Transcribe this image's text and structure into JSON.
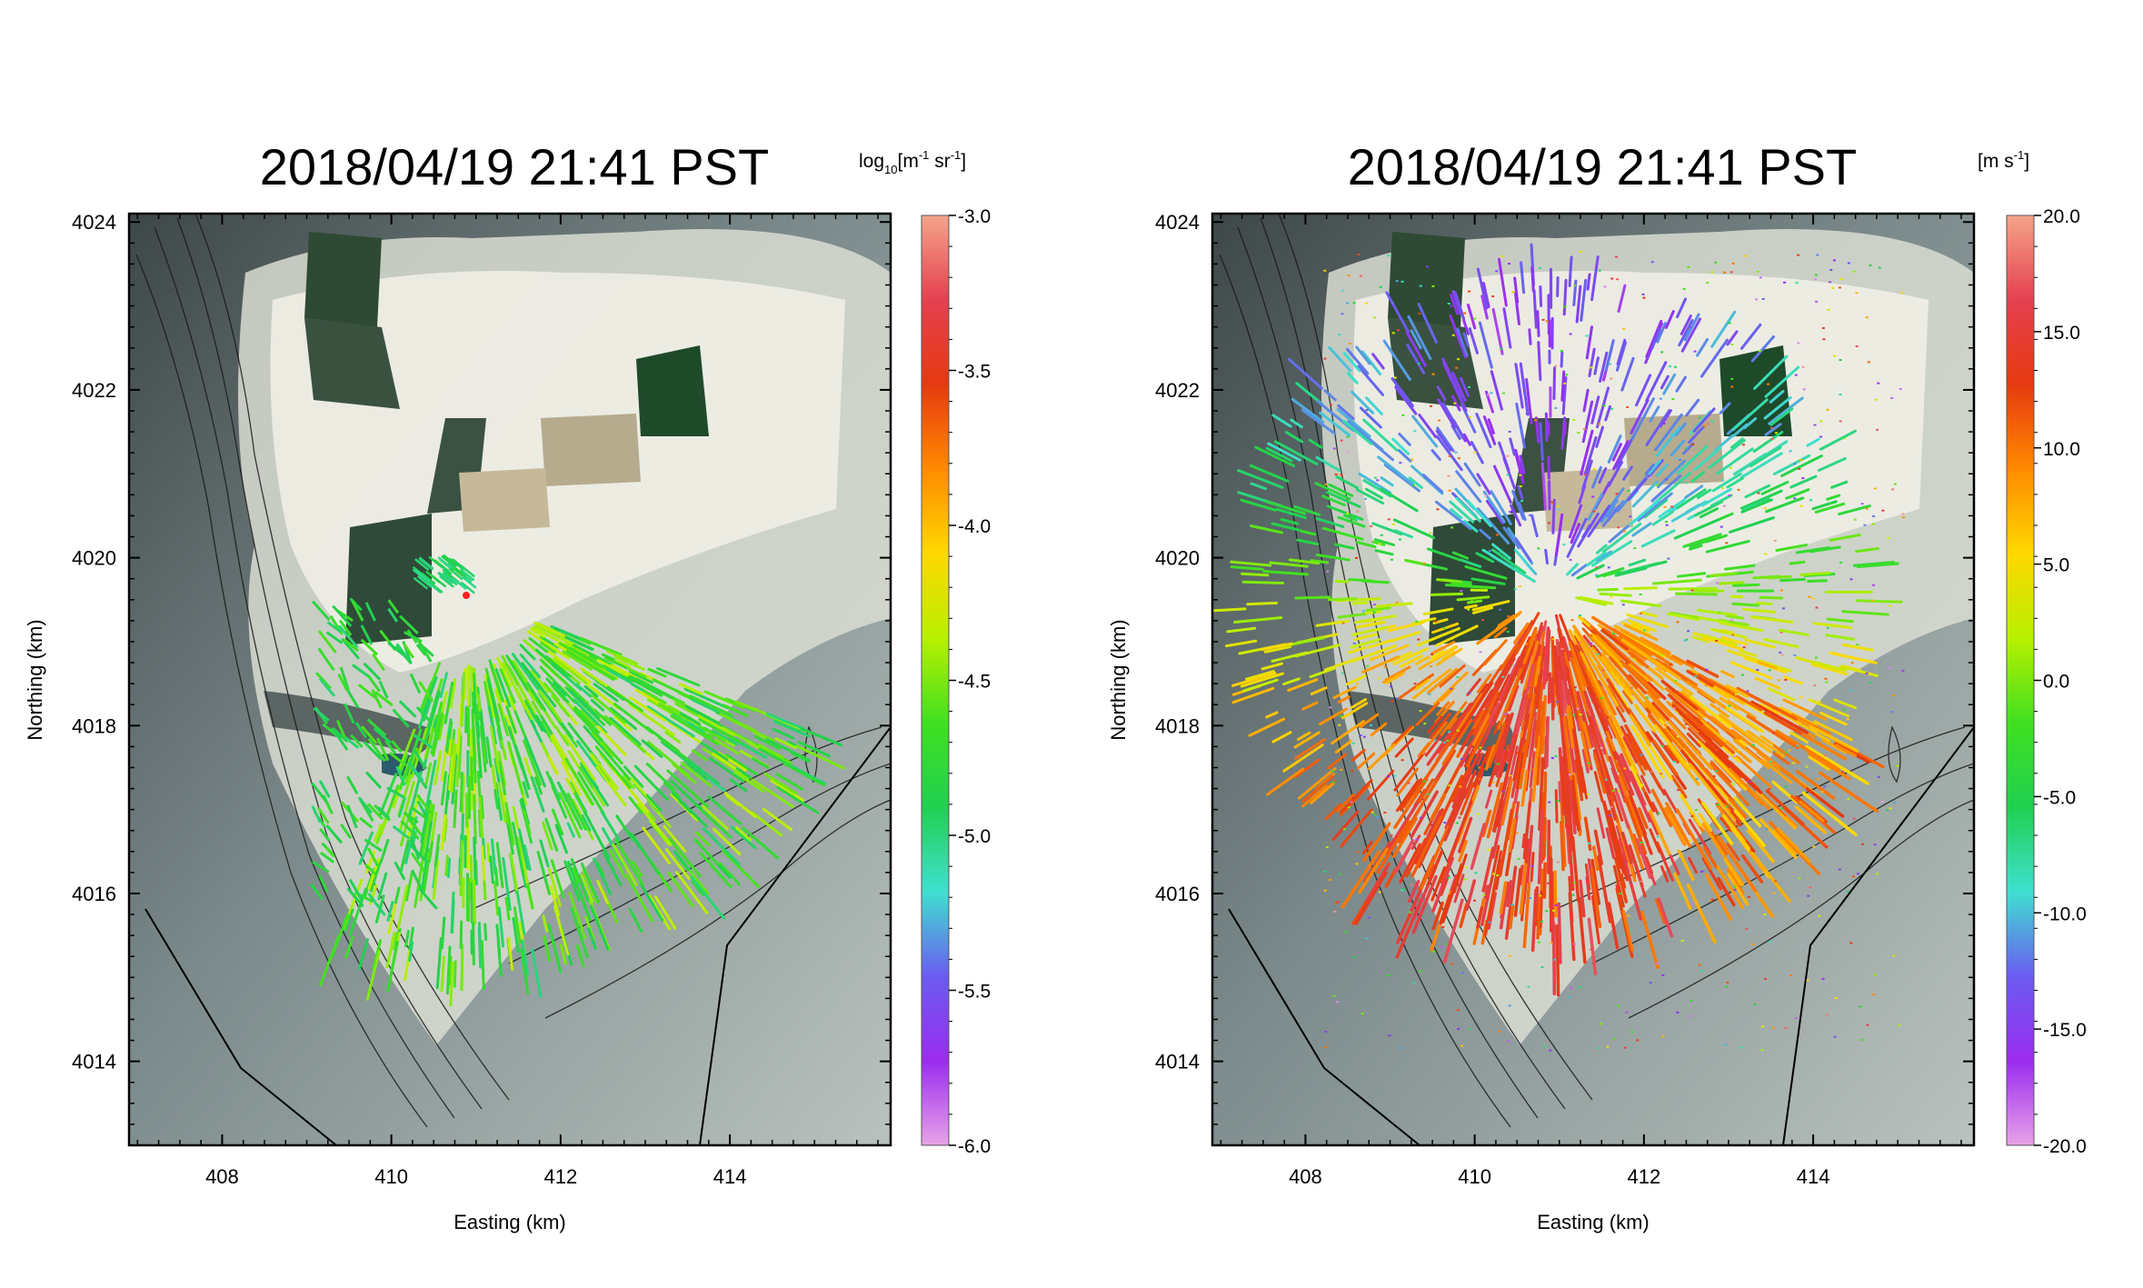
{
  "figure": {
    "panels": [
      {
        "title": "2018/04/19 21:41 PST",
        "colorbar": {
          "label_main": "log",
          "label_sub": "10",
          "label_rest": "[m",
          "label_exp1": "-1",
          "label_mid": " sr",
          "label_exp2": "-1",
          "label_end": "]",
          "ticks": [
            "-3.0",
            "-3.5",
            "-4.0",
            "-4.5",
            "-5.0",
            "-5.5",
            "-6.0"
          ],
          "tick_values": [
            -3.0,
            -3.5,
            -4.0,
            -4.5,
            -5.0,
            -5.5,
            -6.0
          ],
          "range": [
            -6.0,
            -3.0
          ],
          "colormap": [
            "#e8a2e8",
            "#9b2cf0",
            "#6a5cf0",
            "#3fe0d0",
            "#20d050",
            "#40e020",
            "#b8f000",
            "#ffd800",
            "#ff8a00",
            "#e63a10",
            "#e54050",
            "#f4a48a"
          ]
        },
        "scan": "backscatter"
      },
      {
        "title": "2018/04/19 21:41 PST",
        "colorbar": {
          "label_main": "[m s",
          "label_exp1": "-1",
          "label_end": "]",
          "ticks": [
            "20.0",
            "15.0",
            "10.0",
            "5.0",
            "0.0",
            "-5.0",
            "-10.0",
            "-15.0",
            "-20.0"
          ],
          "tick_values": [
            20,
            15,
            10,
            5,
            0,
            -5,
            -10,
            -15,
            -20
          ],
          "range": [
            -20.0,
            20.0
          ],
          "colormap": [
            "#e8a2e8",
            "#9b2cf0",
            "#6a5cf0",
            "#3fe0d0",
            "#20d050",
            "#40e020",
            "#b8f000",
            "#ffd800",
            "#ff8a00",
            "#e63a10",
            "#e54050",
            "#f4a48a"
          ]
        },
        "scan": "velocity"
      }
    ],
    "axes": {
      "xlabel": "Easting (km)",
      "ylabel": "Northing (km)",
      "xticks": [
        "408",
        "410",
        "412",
        "414"
      ],
      "yticks": [
        "4024",
        "4022",
        "4020",
        "4018",
        "4016",
        "4014"
      ]
    }
  },
  "chart_data": [
    {
      "type": "heatmap",
      "title": "2018/04/19 21:41 PST",
      "xlabel": "Easting (km)",
      "ylabel": "Northing (km)",
      "xlim": [
        406.9,
        415.9
      ],
      "ylim": [
        4013.0,
        4024.1
      ],
      "xticks": [
        408,
        410,
        412,
        414
      ],
      "yticks": [
        4014,
        4016,
        4018,
        4020,
        4022,
        4024
      ],
      "colorbar_range": [
        -6.0,
        -3.0
      ],
      "colorbar_ticks": [
        -3.0,
        -3.5,
        -4.0,
        -4.5,
        -5.0,
        -5.5,
        -6.0
      ],
      "colorbar_label": "log10[m-1 sr-1]",
      "lidar_origin": [
        410.9,
        4019.6
      ],
      "dominant_value_range": [
        -4.8,
        -4.2
      ]
    },
    {
      "type": "heatmap",
      "title": "2018/04/19 21:41 PST",
      "xlabel": "Easting (km)",
      "ylabel": "Northing (km)",
      "xlim": [
        406.9,
        415.9
      ],
      "ylim": [
        4013.0,
        4024.1
      ],
      "xticks": [
        408,
        410,
        412,
        414
      ],
      "yticks": [
        4014,
        4016,
        4018,
        4020,
        4022,
        4024
      ],
      "colorbar_range": [
        -20.0,
        20.0
      ],
      "colorbar_ticks": [
        20.0,
        15.0,
        10.0,
        5.0,
        0.0,
        -5.0,
        -10.0,
        -15.0,
        -20.0
      ],
      "colorbar_label": "[m s-1]",
      "lidar_origin": [
        410.9,
        4019.6
      ],
      "north_sector_value": -14,
      "south_sector_value": 14,
      "east_west_sector_value": 0
    }
  ]
}
